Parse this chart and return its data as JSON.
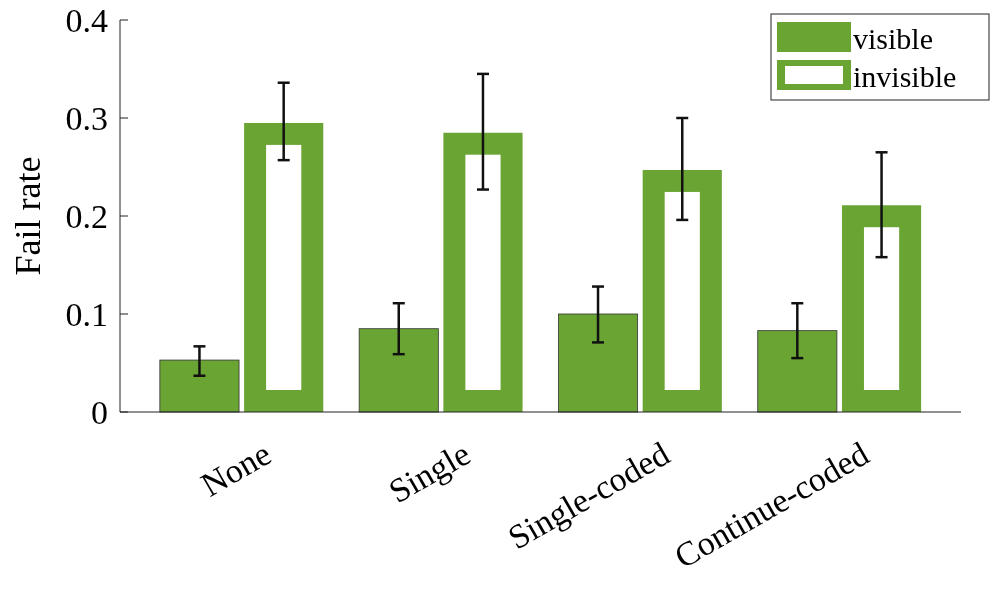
{
  "chart_data": {
    "type": "bar",
    "ylabel": "Fail rate",
    "categories": [
      "None",
      "Single",
      "Single-coded",
      "Continue-coded"
    ],
    "series": [
      {
        "name": "visible",
        "color": "#6aa534",
        "values": [
          0.053,
          0.085,
          0.1,
          0.083
        ],
        "errors": [
          [
            0.037,
            0.067
          ],
          [
            0.059,
            0.111
          ],
          [
            0.071,
            0.128
          ],
          [
            0.055,
            0.111
          ]
        ]
      },
      {
        "name": "invisible",
        "color": "#6aa534",
        "values": [
          0.295,
          0.285,
          0.247,
          0.211
        ],
        "errors": [
          [
            0.257,
            0.336
          ],
          [
            0.227,
            0.345
          ],
          [
            0.196,
            0.3
          ],
          [
            0.158,
            0.265
          ]
        ]
      }
    ],
    "ylim": [
      0,
      0.4
    ],
    "yticks": [
      0,
      0.1,
      0.2,
      0.3,
      0.4
    ],
    "grid": false,
    "legend": "top right"
  }
}
